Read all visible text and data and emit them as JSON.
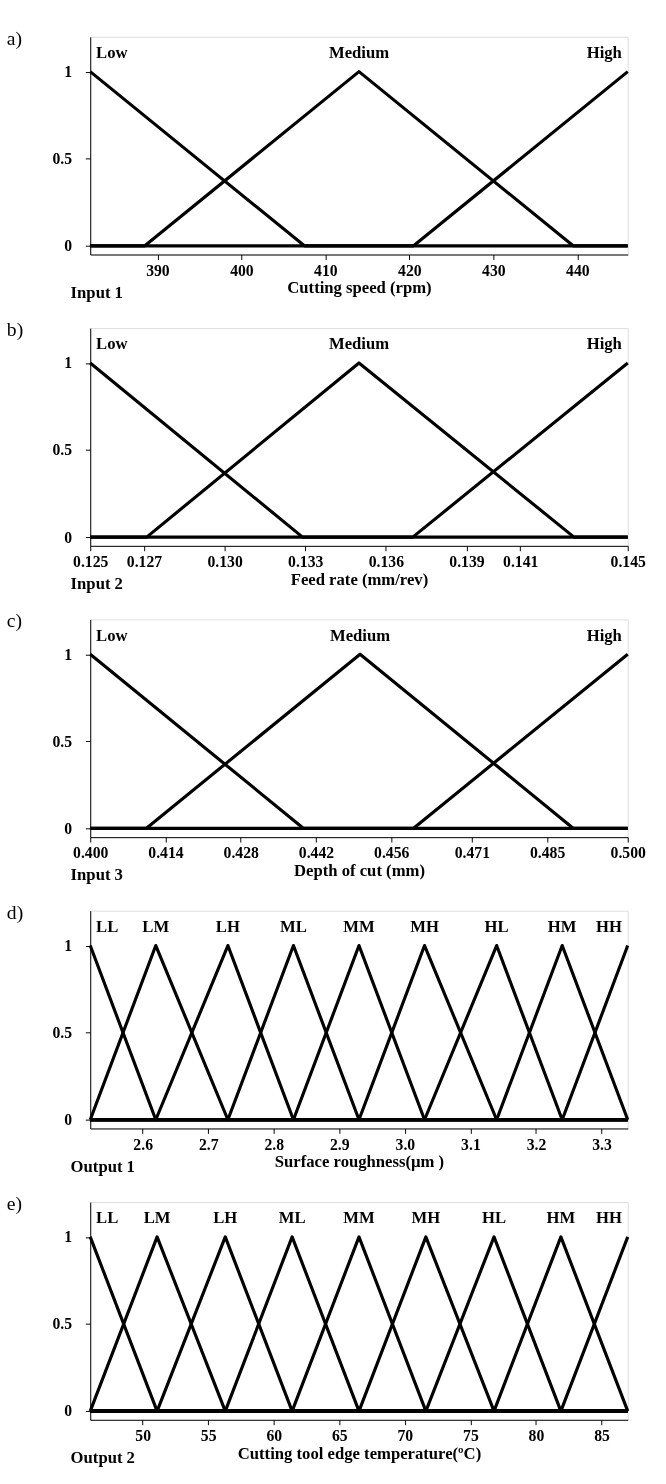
{
  "chart_data": [
    {
      "type": "line",
      "title": "a)",
      "xlabel": "Cutting speed (rpm)",
      "annotations": [
        "Input 1"
      ],
      "xlim": [
        382,
        446
      ],
      "ylim": [
        -0.05,
        1.2
      ],
      "xticks": [
        390,
        400,
        410,
        420,
        430,
        440
      ],
      "yticks": [
        0,
        0.5,
        1
      ],
      "grid": false,
      "series": [
        {
          "name": "Low",
          "color": "#000000",
          "x": [
            382,
            407.5,
            446
          ],
          "values": [
            1,
            0,
            0
          ]
        },
        {
          "name": "Medium",
          "color": "#000000",
          "x": [
            382,
            388.5,
            414,
            439.5,
            446
          ],
          "values": [
            0,
            0,
            1,
            0,
            0
          ]
        },
        {
          "name": "High",
          "color": "#000000",
          "x": [
            382,
            420.5,
            446
          ],
          "values": [
            0,
            0,
            1
          ]
        }
      ]
    },
    {
      "type": "line",
      "title": "b)",
      "xlabel": "Feed rate (mm/rev)",
      "annotations": [
        "Input 2"
      ],
      "xlim": [
        0.125,
        0.145
      ],
      "ylim": [
        -0.05,
        1.2
      ],
      "xticks": [
        {
          "value": 0.125,
          "label": "0.125"
        },
        {
          "value": 0.127,
          "label": "0.127"
        },
        {
          "value": 0.13,
          "label": "0.130"
        },
        {
          "value": 0.133,
          "label": "0.133"
        },
        {
          "value": 0.136,
          "label": "0.136"
        },
        {
          "value": 0.139,
          "label": "0.139"
        },
        {
          "value": 0.141,
          "label": "0.141"
        },
        {
          "value": 0.145,
          "label": "0.145"
        }
      ],
      "yticks": [
        0,
        0.5,
        1
      ],
      "grid": false,
      "series": [
        {
          "name": "Low",
          "color": "#000000",
          "x": [
            0.125,
            0.1329,
            0.145
          ],
          "values": [
            1,
            0,
            0
          ]
        },
        {
          "name": "Medium",
          "color": "#000000",
          "x": [
            0.125,
            0.1271,
            0.135,
            0.143,
            0.145
          ],
          "values": [
            0,
            0,
            1,
            0,
            0
          ]
        },
        {
          "name": "High",
          "color": "#000000",
          "x": [
            0.125,
            0.137,
            0.145
          ],
          "values": [
            0,
            0,
            1
          ]
        }
      ]
    },
    {
      "type": "line",
      "title": "c)",
      "xlabel": "Depth of cut (mm)",
      "annotations": [
        "Input 3"
      ],
      "xlim": [
        0.4,
        0.5
      ],
      "ylim": [
        -0.05,
        1.2
      ],
      "xticks": [
        {
          "value": 0.4,
          "label": "0.400"
        },
        {
          "value": 0.414,
          "label": "0.414"
        },
        {
          "value": 0.428,
          "label": "0.428"
        },
        {
          "value": 0.442,
          "label": "0.442"
        },
        {
          "value": 0.456,
          "label": "0.456"
        },
        {
          "value": 0.471,
          "label": "0.471"
        },
        {
          "value": 0.485,
          "label": "0.485"
        },
        {
          "value": 0.5,
          "label": "0.500"
        }
      ],
      "yticks": [
        0,
        0.5,
        1
      ],
      "grid": false,
      "series": [
        {
          "name": "Low",
          "color": "#000000",
          "x": [
            0.4,
            0.4397,
            0.5
          ],
          "values": [
            1,
            0,
            0
          ]
        },
        {
          "name": "Medium",
          "color": "#000000",
          "x": [
            0.4,
            0.4104,
            0.4502,
            0.4899,
            0.5
          ],
          "values": [
            0,
            0,
            1,
            0,
            0
          ]
        },
        {
          "name": "High",
          "color": "#000000",
          "x": [
            0.4,
            0.4601,
            0.5
          ],
          "values": [
            0,
            0,
            1
          ]
        }
      ]
    },
    {
      "type": "line",
      "title": "d)",
      "xlabel": "Surface roughness(µm )",
      "annotations": [
        "Output 1"
      ],
      "xlim": [
        2.52,
        3.34
      ],
      "ylim": [
        -0.05,
        1.2
      ],
      "xticks": [
        2.6,
        2.7,
        2.8,
        2.9,
        {
          "value": 3.0,
          "label": "3.0"
        },
        3.1,
        3.2,
        3.3
      ],
      "yticks": [
        0,
        0.5,
        1
      ],
      "grid": false,
      "series": [
        {
          "name": "LL",
          "color": "#000000",
          "x": [
            2.52,
            2.62,
            3.34
          ],
          "values": [
            1,
            0,
            0
          ]
        },
        {
          "name": "LM",
          "color": "#000000",
          "x": [
            2.52,
            2.62,
            2.73,
            3.34
          ],
          "values": [
            0,
            1,
            0,
            0
          ]
        },
        {
          "name": "LH",
          "color": "#000000",
          "x": [
            2.52,
            2.62,
            2.73,
            2.83,
            3.34
          ],
          "values": [
            0,
            0,
            1,
            0,
            0
          ]
        },
        {
          "name": "ML",
          "color": "#000000",
          "x": [
            2.52,
            2.73,
            2.83,
            2.93,
            3.34
          ],
          "values": [
            0,
            0,
            1,
            0,
            0
          ]
        },
        {
          "name": "MM",
          "color": "#000000",
          "x": [
            2.52,
            2.83,
            2.93,
            3.03,
            3.34
          ],
          "values": [
            0,
            0,
            1,
            0,
            0
          ]
        },
        {
          "name": "MH",
          "color": "#000000",
          "x": [
            2.52,
            2.93,
            3.03,
            3.14,
            3.34
          ],
          "values": [
            0,
            0,
            1,
            0,
            0
          ]
        },
        {
          "name": "HL",
          "color": "#000000",
          "x": [
            2.52,
            3.03,
            3.14,
            3.24,
            3.34
          ],
          "values": [
            0,
            0,
            1,
            0,
            0
          ]
        },
        {
          "name": "HM",
          "color": "#000000",
          "x": [
            2.52,
            3.14,
            3.24,
            3.34
          ],
          "values": [
            0,
            0,
            1,
            0
          ]
        },
        {
          "name": "HH",
          "color": "#000000",
          "x": [
            2.52,
            3.24,
            3.34
          ],
          "values": [
            0,
            0,
            1
          ]
        }
      ]
    },
    {
      "type": "line",
      "title": "e)",
      "xlabel": "Cutting tool edge temperature(ºC)",
      "annotations": [
        "Output 2"
      ],
      "xlim": [
        46,
        87
      ],
      "ylim": [
        -0.05,
        1.2
      ],
      "xticks": [
        50,
        55,
        60,
        65,
        70,
        75,
        80,
        85
      ],
      "yticks": [
        0,
        0.5,
        1
      ],
      "grid": false,
      "series": [
        {
          "name": "LL",
          "color": "#000000",
          "x": [
            46,
            51.1,
            87
          ],
          "values": [
            1,
            0,
            0
          ]
        },
        {
          "name": "LM",
          "color": "#000000",
          "x": [
            46,
            51.1,
            56.3,
            87
          ],
          "values": [
            0,
            1,
            0,
            0
          ]
        },
        {
          "name": "LH",
          "color": "#000000",
          "x": [
            46,
            51.1,
            56.3,
            61.4,
            87
          ],
          "values": [
            0,
            0,
            1,
            0,
            0
          ]
        },
        {
          "name": "ML",
          "color": "#000000",
          "x": [
            46,
            56.3,
            61.4,
            66.5,
            87
          ],
          "values": [
            0,
            0,
            1,
            0,
            0
          ]
        },
        {
          "name": "MM",
          "color": "#000000",
          "x": [
            46,
            61.4,
            66.5,
            71.6,
            87
          ],
          "values": [
            0,
            0,
            1,
            0,
            0
          ]
        },
        {
          "name": "MH",
          "color": "#000000",
          "x": [
            46,
            66.5,
            71.6,
            76.8,
            87
          ],
          "values": [
            0,
            0,
            1,
            0,
            0
          ]
        },
        {
          "name": "HL",
          "color": "#000000",
          "x": [
            46,
            71.6,
            76.8,
            81.9,
            87
          ],
          "values": [
            0,
            0,
            1,
            0,
            0
          ]
        },
        {
          "name": "HM",
          "color": "#000000",
          "x": [
            46,
            76.8,
            81.9,
            87
          ],
          "values": [
            0,
            0,
            1,
            0
          ]
        },
        {
          "name": "HH",
          "color": "#000000",
          "x": [
            46,
            81.9,
            87
          ],
          "values": [
            0,
            0,
            1
          ]
        }
      ]
    }
  ]
}
